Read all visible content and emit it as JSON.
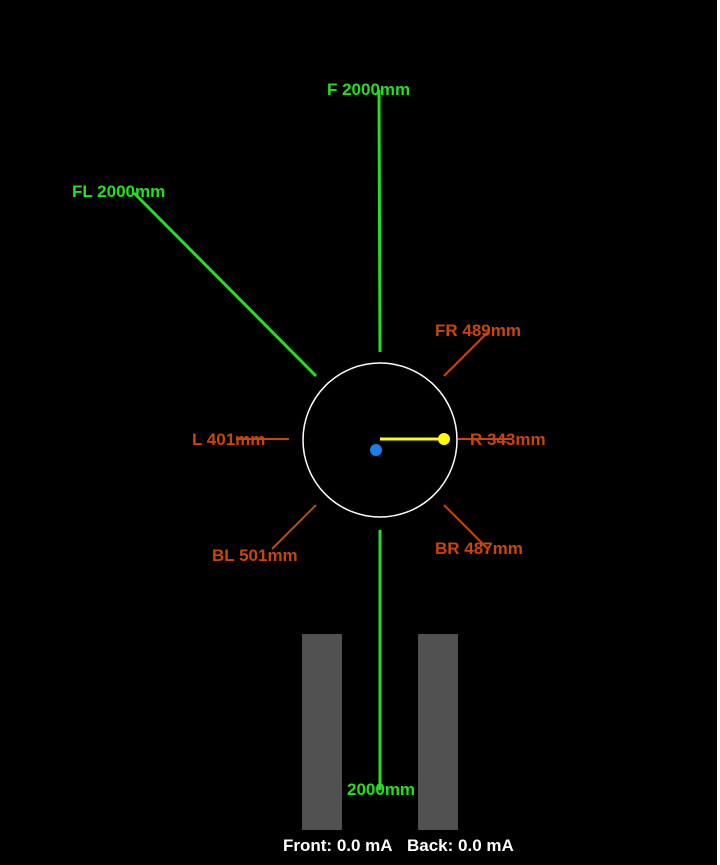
{
  "colors": {
    "background": "#000000",
    "clear": "#22e11e",
    "warning": "#c8460a",
    "robot_outline": "#ffffff",
    "heading": "#ffff00",
    "robot_center": "#1a7fe6",
    "bumper": "#505050",
    "status_text": "#ffffff"
  },
  "sensors": {
    "front": "F 2000mm",
    "front_left": "FL 2000mm",
    "front_right": "FR 489mm",
    "left": "L 401mm",
    "right": "R 343mm",
    "back_left": "BL 501mm",
    "back_right": "BR 487mm",
    "back": "2000mm"
  },
  "status": {
    "front": "Front: 0.0 mA",
    "back": "Back: 0.0 mA"
  }
}
